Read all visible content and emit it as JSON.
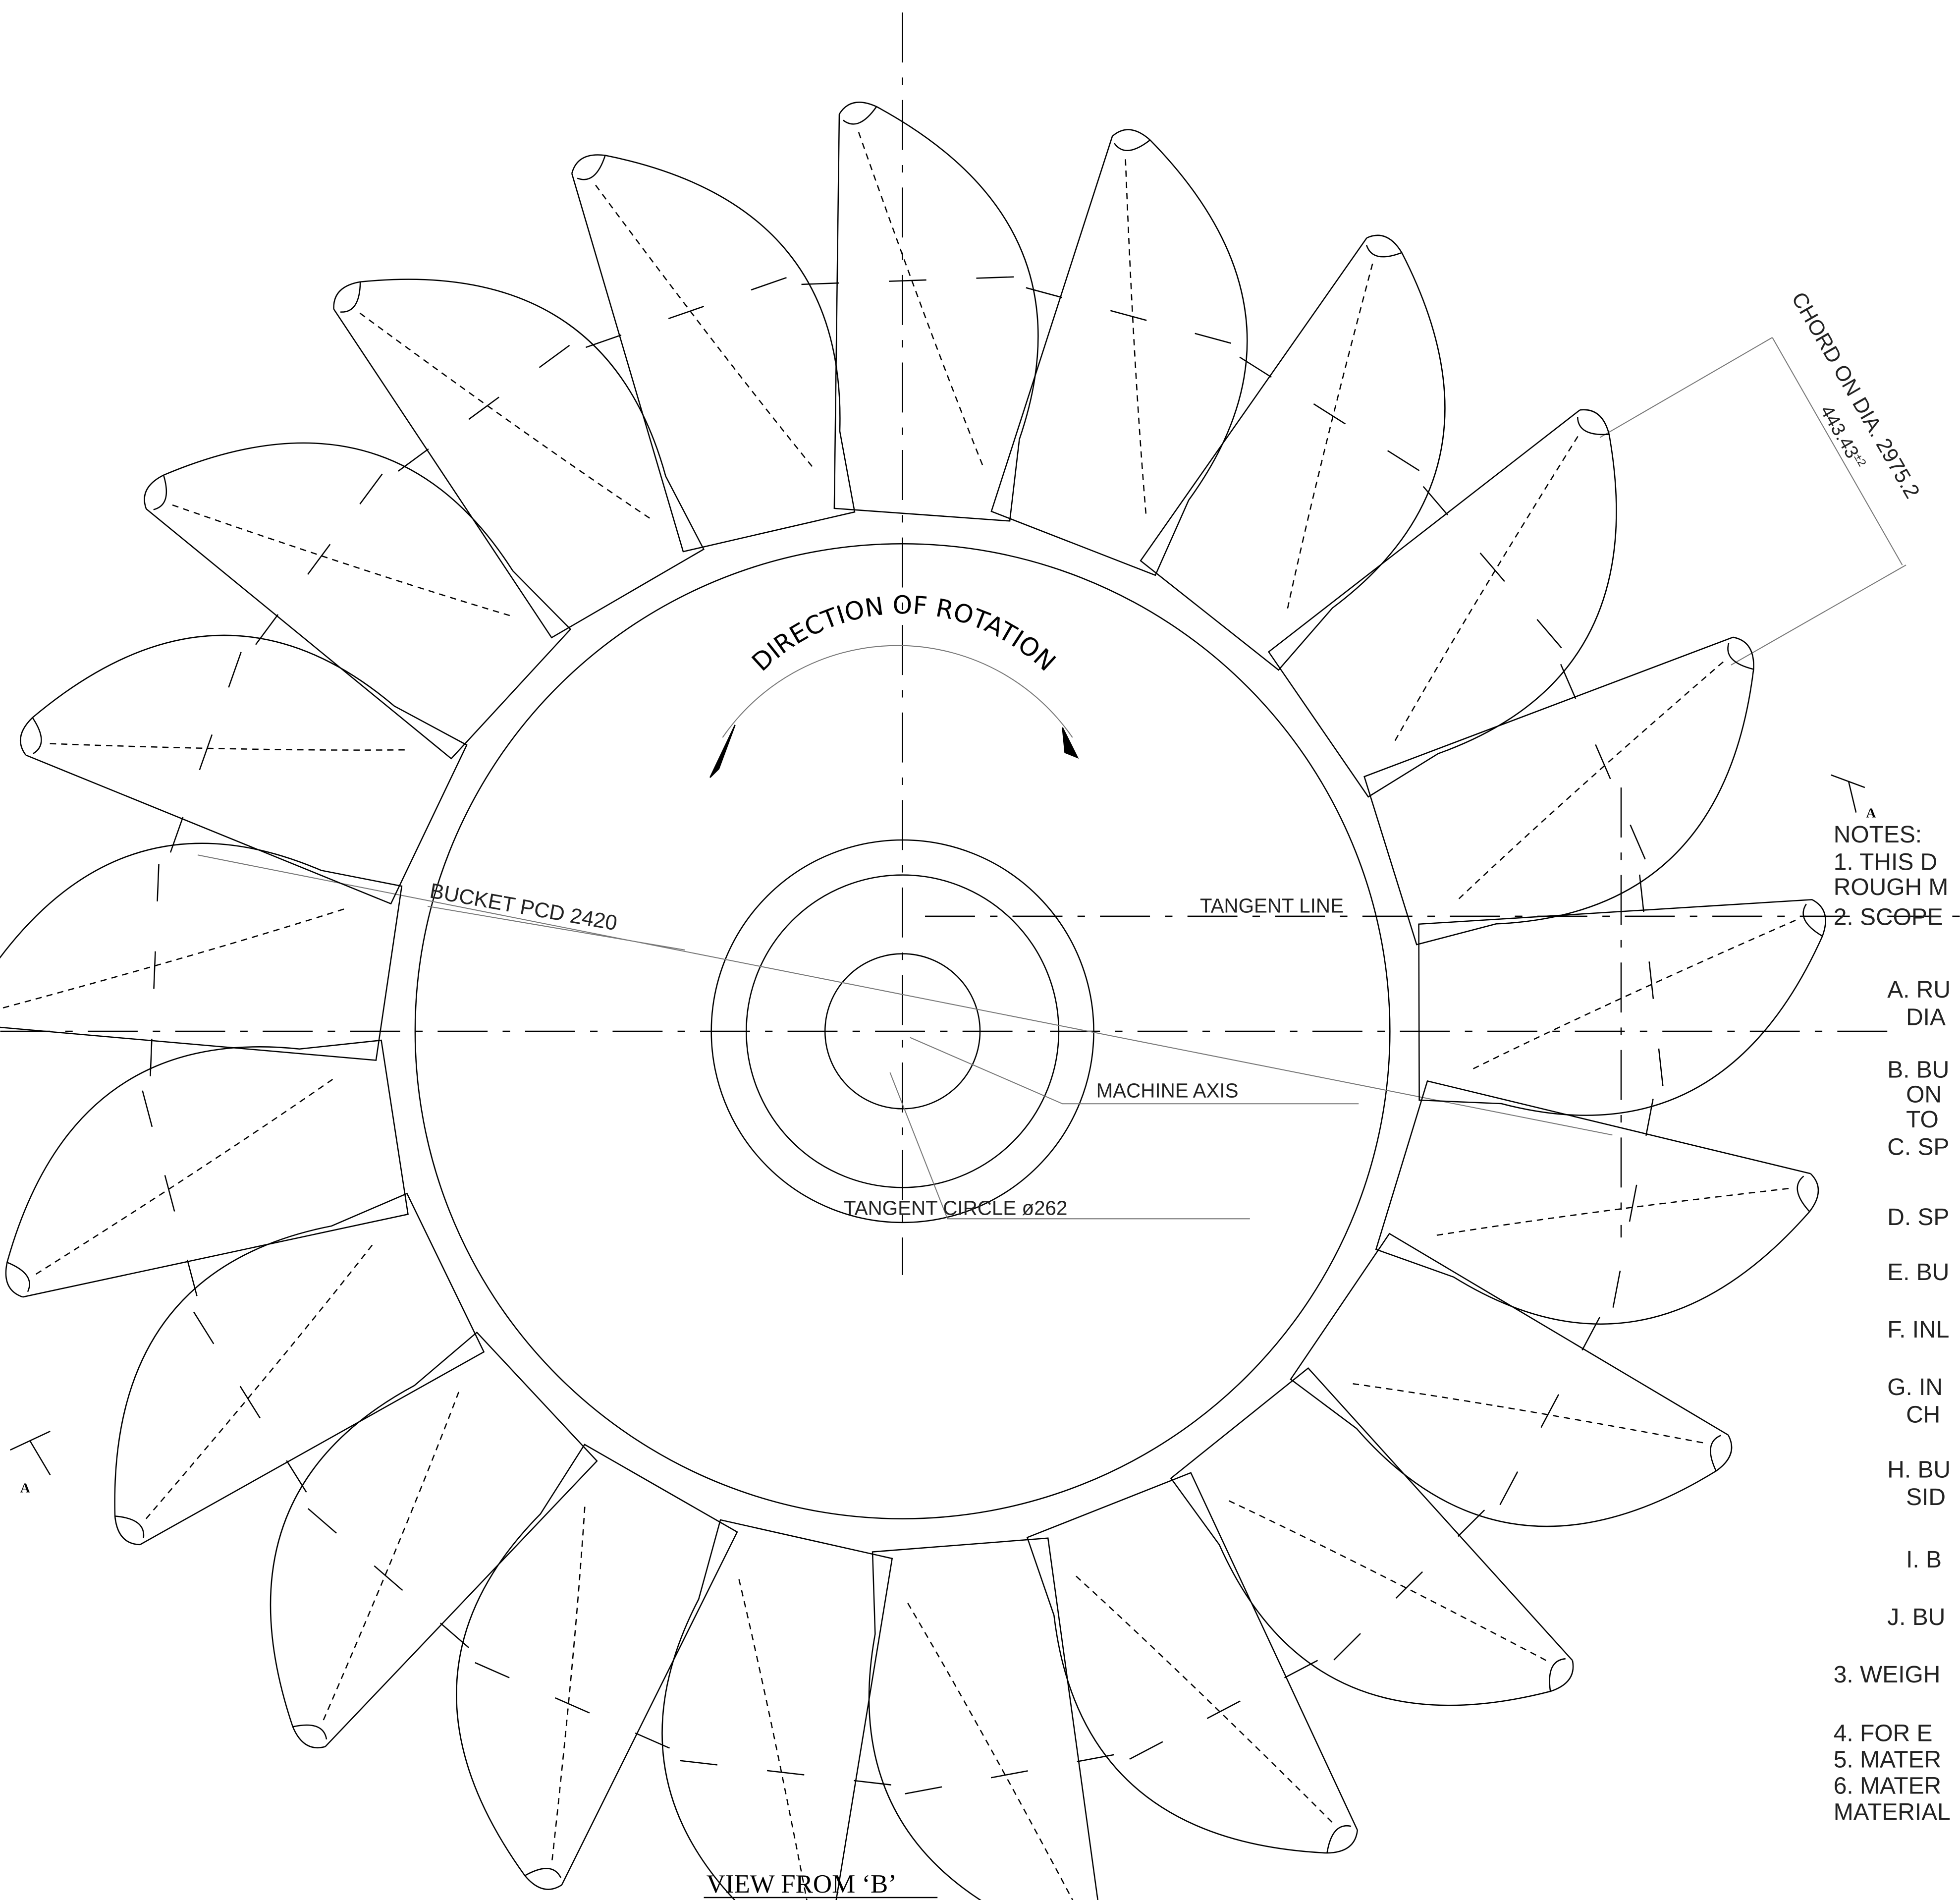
{
  "drawing": {
    "rotation_label": "DIRECTION OF ROTATION",
    "bucket_pcd": "BUCKET PCD 2420",
    "tangent_line": "TANGENT LINE",
    "machine_axis": "MACHINE AXIS",
    "tangent_circle": "TANGENT CIRCLE ø262",
    "chord_label": "CHORD ON DIA. 2975.2",
    "chord_value": "443.43",
    "chord_tolerance": "±2",
    "section_mark": "A",
    "view_title": "VIEW FROM ‘B’"
  },
  "notes": [
    "NOTES:",
    "1. THIS D",
    "ROUGH M",
    "2. SCOPE",
    "A. RU",
    "DIA",
    "B. BU",
    "ON",
    "TO",
    "C. SP",
    "D. SP",
    "E. BU",
    "F. INL",
    "G. IN",
    "CH",
    "H. BU",
    "SID",
    "I. B",
    "J. BU",
    "3. WEIGH",
    "4. FOR E",
    "5. MATER",
    "6. MATER",
    "MATERIAL"
  ]
}
